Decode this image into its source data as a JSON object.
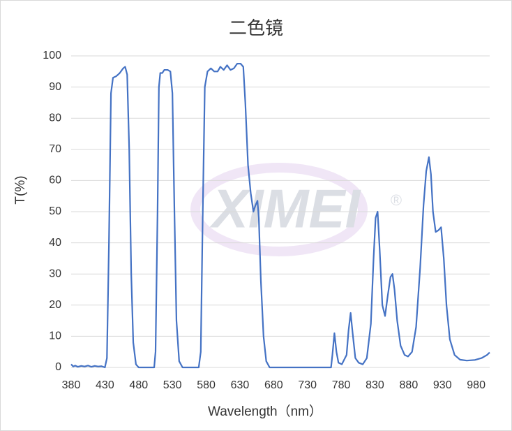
{
  "chart_data": {
    "type": "line",
    "title": "二色镜",
    "xlabel": "Wavelength（nm）",
    "ylabel": "T(%)",
    "watermark": "XIMEI",
    "watermark_mark": "®",
    "xlim": [
      380,
      1000
    ],
    "xticks": [
      380,
      430,
      480,
      530,
      580,
      630,
      680,
      730,
      780,
      830,
      880,
      930,
      980
    ],
    "ylim": [
      0,
      100
    ],
    "yticks": [
      0,
      10,
      20,
      30,
      40,
      50,
      60,
      70,
      80,
      90,
      100
    ],
    "grid": true,
    "color": "#4472c4",
    "x": [
      380,
      383,
      386,
      390,
      395,
      400,
      405,
      410,
      415,
      420,
      425,
      430,
      433,
      436,
      439,
      442,
      447,
      452,
      457,
      460,
      463,
      466,
      469,
      472,
      476,
      480,
      503,
      505,
      508,
      510,
      512,
      515,
      518,
      523,
      527,
      530,
      533,
      536,
      540,
      545,
      569,
      572,
      575,
      578,
      582,
      587,
      592,
      597,
      601,
      606,
      611,
      616,
      621,
      626,
      631,
      635,
      638,
      642,
      646,
      650,
      653,
      656,
      658,
      661,
      665,
      669,
      674,
      765,
      767,
      770,
      773,
      776,
      781,
      788,
      791,
      794,
      797,
      801,
      806,
      812,
      818,
      824,
      828,
      831,
      834,
      837,
      841,
      845,
      849,
      853,
      856,
      859,
      863,
      868,
      874,
      879,
      885,
      891,
      897,
      902,
      906,
      910,
      913,
      916,
      920,
      924,
      928,
      932,
      936,
      941,
      948,
      956,
      966,
      978,
      988,
      996,
      1000
    ],
    "values": [
      1,
      0.3,
      0.6,
      0.2,
      0.5,
      0.3,
      0.6,
      0.2,
      0.5,
      0.3,
      0.4,
      0,
      3,
      40,
      88,
      93,
      93.5,
      94.5,
      96,
      96.5,
      94,
      70,
      30,
      8,
      1,
      0,
      0,
      5,
      50,
      90,
      94.5,
      94.5,
      95.5,
      95.5,
      95,
      88,
      50,
      15,
      2,
      0,
      0,
      5,
      50,
      90,
      95,
      96,
      95,
      95,
      96.5,
      95.5,
      97,
      95.5,
      96,
      97.5,
      97.5,
      96.5,
      85,
      65,
      56,
      50,
      52,
      53.5,
      48,
      28,
      10,
      2,
      0,
      0,
      4,
      11,
      5,
      1.5,
      1,
      4,
      12,
      17.5,
      11,
      3,
      1.5,
      1,
      3,
      14,
      35,
      48,
      50,
      38,
      20,
      16.5,
      23,
      29,
      30,
      25,
      15,
      7,
      4,
      3.5,
      5,
      13,
      32,
      52,
      63,
      67.5,
      62,
      50,
      43.5,
      44,
      45,
      35,
      20,
      9,
      4,
      2.5,
      2.2,
      2.4,
      3,
      4,
      4.8
    ]
  }
}
